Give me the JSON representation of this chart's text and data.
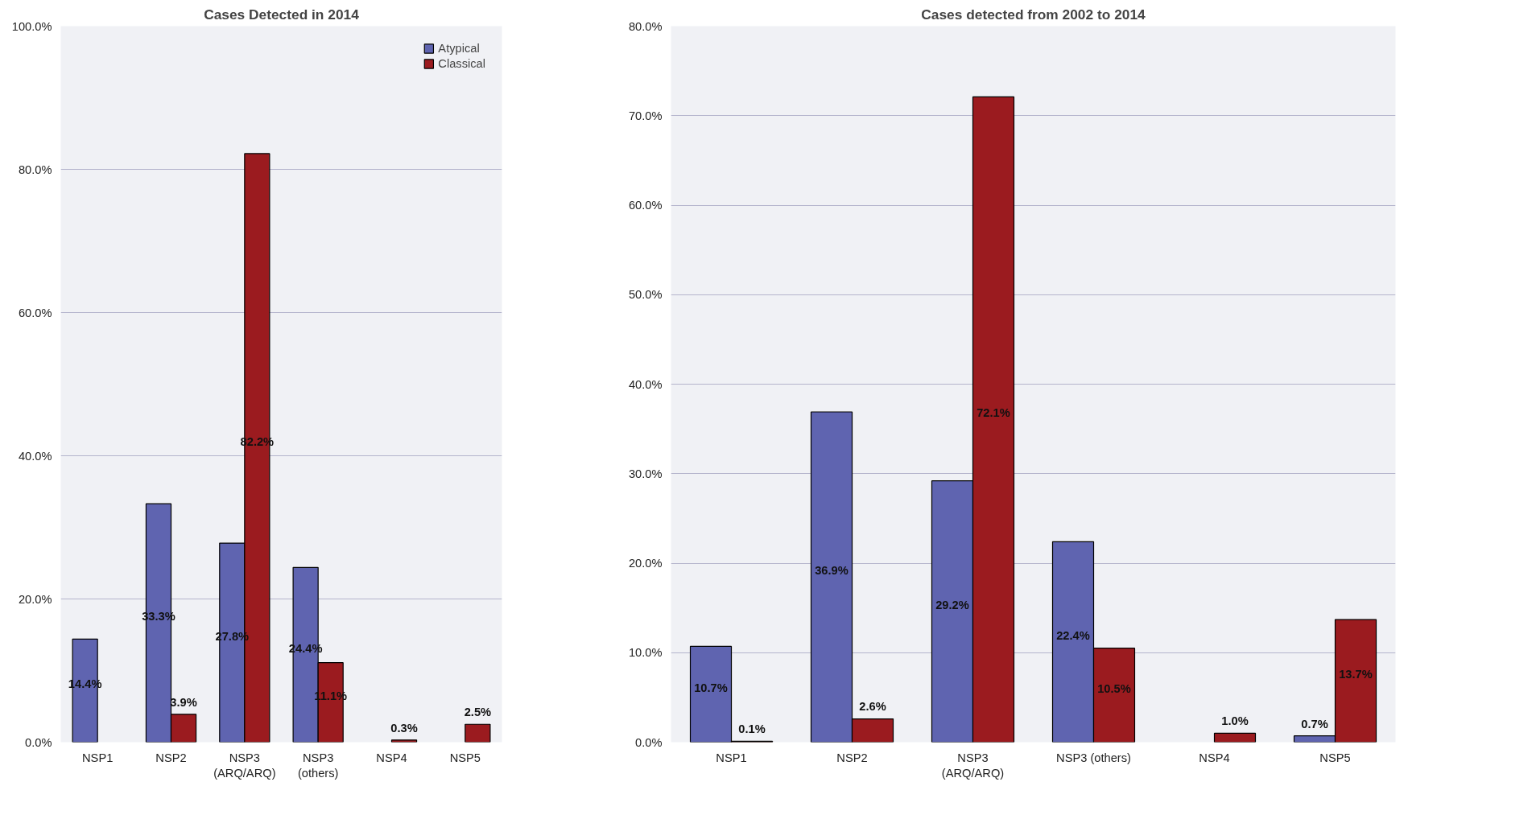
{
  "chart_data": [
    {
      "type": "bar",
      "title": "Cases Detected in 2014",
      "categories": [
        "NSP1",
        "NSP2",
        "NSP3\n(ARQ/ARQ)",
        "NSP3\n(others)",
        "NSP4",
        "NSP5"
      ],
      "series": [
        {
          "name": "Atypical",
          "color": "#5f64b0",
          "values": [
            14.4,
            33.3,
            27.8,
            24.4,
            null,
            null
          ],
          "value_labels": [
            "14.4%",
            "33.3%",
            "27.8%",
            "24.4%",
            null,
            null
          ]
        },
        {
          "name": "Classical",
          "color": "#9b1b1f",
          "values": [
            null,
            3.9,
            82.2,
            11.1,
            0.3,
            2.5
          ],
          "value_labels": [
            null,
            "3.9%",
            "82.2%",
            "11.1%",
            "0.3%",
            "2.5%"
          ]
        }
      ],
      "ylim": [
        0,
        100
      ],
      "yticks": [
        {
          "value": 0,
          "label": "0.0%"
        },
        {
          "value": 20,
          "label": "20.0%"
        },
        {
          "value": 40,
          "label": "40.0%"
        },
        {
          "value": 60,
          "label": "60.0%"
        },
        {
          "value": 80,
          "label": "80.0%"
        },
        {
          "value": 100,
          "label": "100.0%"
        }
      ],
      "grid": "y",
      "legend": "top right"
    },
    {
      "type": "bar",
      "title": "Cases detected from 2002 to 2014",
      "categories": [
        "NSP1",
        "NSP2",
        "NSP3\n(ARQ/ARQ)",
        "NSP3 (others)",
        "NSP4",
        "NSP5"
      ],
      "series": [
        {
          "color": "#5f64b0",
          "values": [
            10.7,
            36.9,
            29.2,
            22.4,
            null,
            0.7
          ],
          "value_labels": [
            "10.7%",
            "36.9%",
            "29.2%",
            "22.4%",
            null,
            "0.7%"
          ]
        },
        {
          "color": "#9b1b1f",
          "values": [
            0.1,
            2.6,
            72.1,
            10.5,
            1.0,
            13.7
          ],
          "value_labels": [
            "0.1%",
            "2.6%",
            "72.1%",
            "10.5%",
            "1.0%",
            "13.7%"
          ]
        }
      ],
      "ylim": [
        0,
        80
      ],
      "yticks": [
        {
          "value": 0,
          "label": "0.0%"
        },
        {
          "value": 10,
          "label": "10.0%"
        },
        {
          "value": 20,
          "label": "20.0%"
        },
        {
          "value": 30,
          "label": "30.0%"
        },
        {
          "value": 40,
          "label": "40.0%"
        },
        {
          "value": 50,
          "label": "50.0%"
        },
        {
          "value": 60,
          "label": "60.0%"
        },
        {
          "value": 70,
          "label": "70.0%"
        },
        {
          "value": 80,
          "label": "80.0%"
        }
      ],
      "grid": "y",
      "legend": false
    }
  ]
}
